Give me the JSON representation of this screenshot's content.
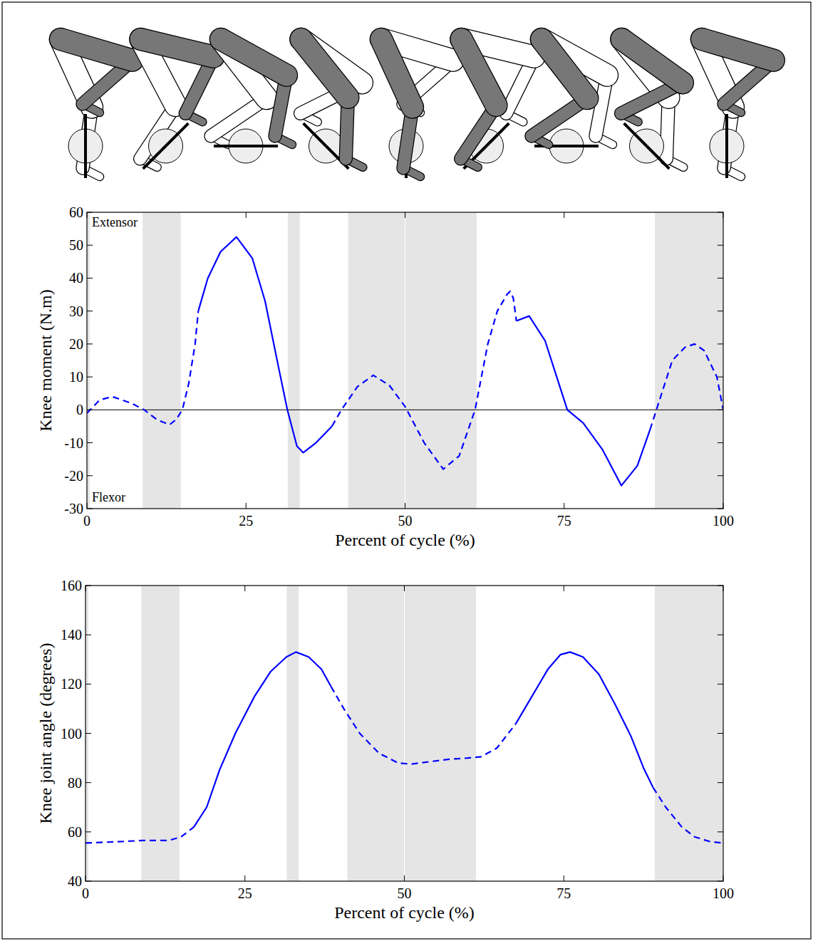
{
  "chart_data": [
    {
      "type": "line",
      "ylabel": "Knee moment (N.m)",
      "xlabel": "Percent of cycle (%)",
      "annotations": [
        "Extensor",
        "Flexor"
      ],
      "x": [
        0,
        2,
        4,
        7,
        9,
        11,
        13,
        14,
        15,
        16,
        17,
        17.5,
        19,
        21,
        23.5,
        26,
        28,
        30,
        31.5,
        33,
        34,
        36,
        38.5,
        40,
        42.5,
        45,
        47.5,
        50,
        53,
        56,
        58.5,
        61,
        63,
        64.5,
        66,
        66.5,
        67,
        67.5,
        69.5,
        72,
        74.5,
        75.5,
        78,
        81,
        84,
        86.5,
        88.5,
        89.5,
        92,
        94,
        95.5,
        97,
        99,
        100
      ],
      "series": [
        {
          "line_style": "dashed",
          "color": "#0000ff",
          "values": [
            -1,
            3,
            4,
            2,
            0,
            -3,
            -4.5,
            -3,
            0,
            8,
            20,
            30,
            null,
            null,
            null,
            null,
            null,
            null,
            null,
            null,
            null,
            null,
            -5,
            0,
            7,
            10.5,
            7.5,
            1,
            -10,
            -18,
            -14,
            0,
            20,
            30,
            35,
            36,
            34,
            27,
            null,
            null,
            null,
            null,
            null,
            null,
            null,
            null,
            -6,
            0,
            15,
            19,
            20,
            18,
            10,
            0
          ]
        },
        {
          "line_style": "solid",
          "color": "#0000ff",
          "values": [
            null,
            null,
            null,
            null,
            null,
            null,
            null,
            null,
            null,
            null,
            null,
            30,
            40,
            48,
            52.5,
            46,
            33,
            14,
            0,
            -11,
            -13,
            -10,
            -5,
            null,
            null,
            null,
            null,
            null,
            null,
            null,
            null,
            null,
            null,
            null,
            null,
            null,
            null,
            27,
            28.5,
            21,
            6,
            0,
            -4,
            -12,
            -23,
            -17,
            -6,
            null,
            null,
            null,
            null,
            null,
            null,
            null
          ]
        }
      ],
      "xlim": [
        0,
        100
      ],
      "xticks": [
        0,
        25,
        50,
        75,
        100
      ],
      "ylim": [
        -30,
        60
      ],
      "yticks": [
        -30,
        -20,
        -10,
        0,
        10,
        20,
        30,
        40,
        50,
        60
      ],
      "reference_line": 0,
      "shaded_regions": [
        [
          0,
          0.5
        ],
        [
          8.7,
          14.8
        ],
        [
          31.5,
          33.5
        ],
        [
          41,
          50
        ],
        [
          50,
          61.3
        ],
        [
          89.2,
          100
        ]
      ],
      "grid": false
    },
    {
      "type": "line",
      "ylabel": "Knee joint angle (degrees)",
      "xlabel": "Percent of cycle (%)",
      "x": [
        0,
        5,
        9,
        13,
        15,
        17,
        19,
        21,
        23.5,
        26.5,
        29,
        31.5,
        33,
        35,
        37,
        38.5,
        40.5,
        43,
        46,
        49,
        51,
        54,
        57,
        60,
        62,
        64.5,
        66,
        67.5,
        70,
        72.5,
        74.5,
        76,
        78,
        80.5,
        83,
        85.5,
        87.5,
        89,
        91,
        93.5,
        95.5,
        98,
        100
      ],
      "series": [
        {
          "line_style": "dashed",
          "color": "#0000ff",
          "values": [
            55.5,
            56,
            56.5,
            56.5,
            58,
            62,
            null,
            null,
            null,
            null,
            null,
            null,
            null,
            null,
            null,
            119,
            110,
            100,
            92,
            88,
            87.5,
            88.5,
            89.5,
            90,
            90.5,
            94,
            99,
            104,
            null,
            null,
            null,
            null,
            null,
            null,
            null,
            null,
            null,
            78,
            70,
            62,
            58,
            56,
            55.5
          ]
        },
        {
          "line_style": "solid",
          "color": "#0000ff",
          "values": [
            null,
            null,
            null,
            null,
            null,
            62,
            70,
            85,
            100,
            115,
            125,
            131,
            133,
            131,
            126,
            119,
            null,
            null,
            null,
            null,
            null,
            null,
            null,
            null,
            null,
            null,
            null,
            104,
            115,
            126,
            132,
            133,
            131,
            124,
            112,
            99,
            86,
            78,
            null,
            null,
            null,
            null,
            null
          ]
        }
      ],
      "xlim": [
        0,
        100
      ],
      "xticks": [
        0,
        25,
        50,
        75,
        100
      ],
      "ylim": [
        40,
        160
      ],
      "yticks": [
        40,
        60,
        80,
        100,
        120,
        140,
        160
      ],
      "shaded_regions": [
        [
          0,
          0.5
        ],
        [
          8.7,
          14.8
        ],
        [
          31.5,
          33.5
        ],
        [
          41,
          50
        ],
        [
          50,
          61.3
        ],
        [
          89.2,
          100
        ]
      ],
      "grid": false
    }
  ]
}
